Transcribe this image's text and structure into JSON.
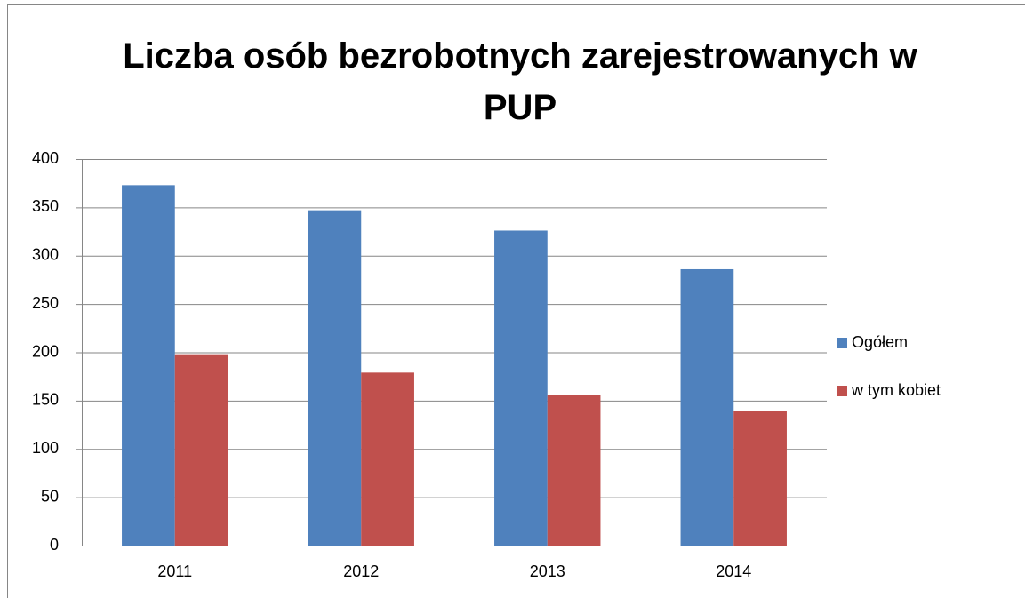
{
  "chart_data": {
    "type": "bar",
    "title": "Liczba osób bezrobotnych zarejestrowanych w PUP",
    "categories": [
      "2011",
      "2012",
      "2013",
      "2014"
    ],
    "series": [
      {
        "name": "Ogółem",
        "color": "#4f81bd",
        "values": [
          373,
          347,
          326,
          286
        ]
      },
      {
        "name": "w tym kobiet",
        "color": "#c0504d",
        "values": [
          198,
          179,
          156,
          139
        ]
      }
    ],
    "ylim": [
      0,
      400
    ],
    "yticks": [
      0,
      50,
      100,
      150,
      200,
      250,
      300,
      350,
      400
    ],
    "grid": true,
    "legend": "right"
  }
}
